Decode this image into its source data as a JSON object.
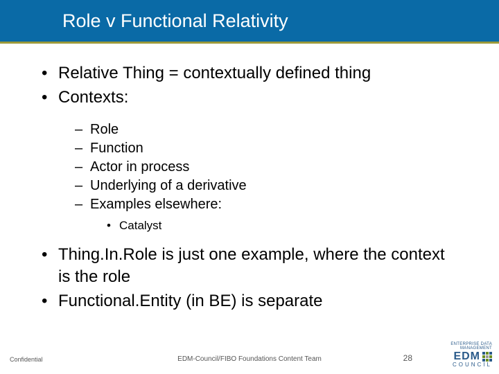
{
  "title": "Role v Functional Relativity",
  "colors": {
    "title_bar_bg": "#0a6aa6",
    "title_text": "#ffffff",
    "accent_line": "#9c9a3a",
    "body_text": "#000000",
    "footer_text": "#555555",
    "logo_primary": "#2a5a8a",
    "logo_green": "#6b8e23",
    "logo_grey": "#999999",
    "background": "#ffffff"
  },
  "typography": {
    "title_fontsize": 27,
    "level1_fontsize": 24,
    "level2_fontsize": 20,
    "level3_fontsize": 17,
    "footer_fontsize": 10,
    "font_family": "Arial"
  },
  "bullets": {
    "level1": [
      "Relative Thing = contextually defined thing",
      "Contexts:"
    ],
    "level2": [
      "Role",
      "Function",
      "Actor in process",
      "Underlying of a derivative",
      "Examples elsewhere:"
    ],
    "level3": [
      "Catalyst"
    ],
    "level1b": [
      "Thing.In.Role is just one example, where the context is the role",
      "Functional.Entity (in BE) is separate"
    ],
    "markers": {
      "l1": "•",
      "l2": "–",
      "l3": "•"
    }
  },
  "footer": {
    "left": "Confidential",
    "center": "EDM-Council/FIBO Foundations Content Team",
    "page_number": "28",
    "logo": {
      "top": "ENTERPRISE DATA MANAGEMENT",
      "main": "EDM",
      "bottom": "COUNCIL"
    }
  }
}
